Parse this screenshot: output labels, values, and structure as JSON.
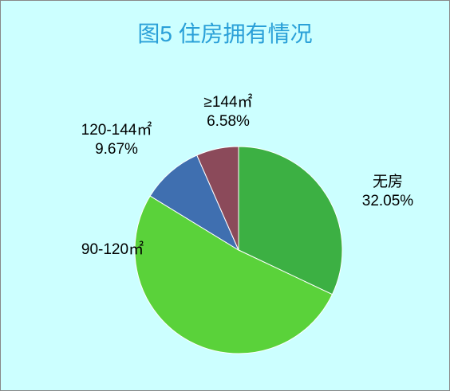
{
  "chart_data": {
    "type": "pie",
    "title": "图5 住房拥有情况",
    "categories": [
      "无房",
      "90-120㎡",
      "120-144㎡",
      "≥144㎡"
    ],
    "values": [
      32.05,
      51.7,
      9.67,
      6.58
    ],
    "value_labels": [
      "32.05%",
      null,
      "9.67%",
      "6.58%"
    ],
    "colors": [
      "#3cb043",
      "#5ad23a",
      "#3f6fb0",
      "#8b4a5a"
    ]
  }
}
